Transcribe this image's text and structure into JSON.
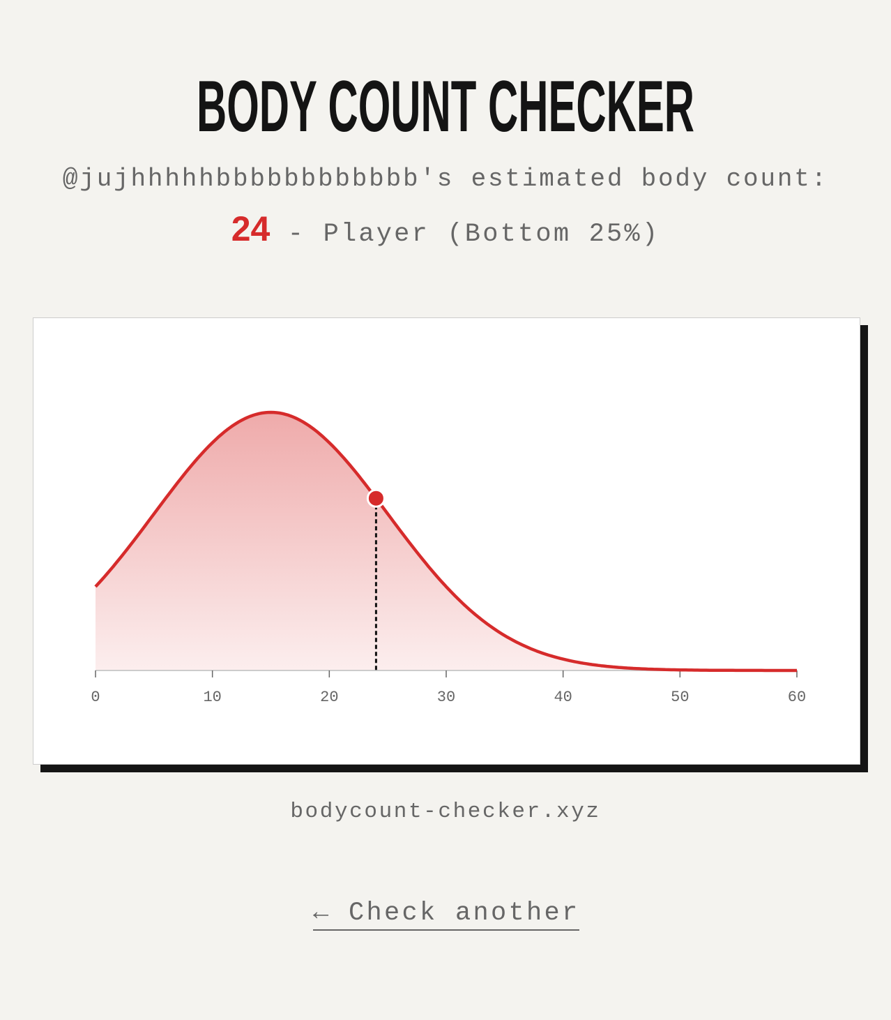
{
  "header": {
    "title": "BODY COUNT CHECKER",
    "subtitle": "@jujhhhhhbbbbbbbbbbbb's estimated body count:",
    "count": "24",
    "result_text": " - Player (Bottom 25%)"
  },
  "colors": {
    "accent": "#d62b2b",
    "background": "#f4f3ef",
    "text": "#666666",
    "title": "#141414"
  },
  "chart_data": {
    "type": "area",
    "title": "",
    "xlabel": "",
    "ylabel": "",
    "distribution": "normal",
    "mean": 15,
    "sd": 10,
    "xlim": [
      0,
      60
    ],
    "x_ticks": [
      "0",
      "10",
      "20",
      "30",
      "40",
      "50",
      "60"
    ],
    "marker": {
      "x": 24
    },
    "grid": false,
    "legend": "none"
  },
  "footer": {
    "site": "bodycount-checker.xyz"
  },
  "actions": {
    "check_another": "← Check another"
  }
}
